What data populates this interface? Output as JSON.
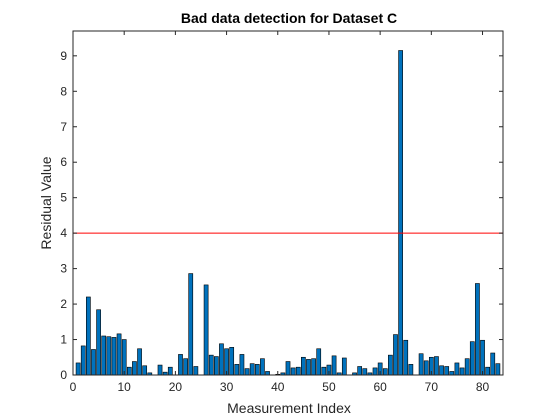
{
  "chart_data": {
    "type": "bar",
    "title": "Bad data detection for Dataset C",
    "xlabel": "Measurement Index",
    "ylabel": "Residual Value",
    "xlim": [
      0,
      84
    ],
    "ylim": [
      0,
      9.7
    ],
    "xticks": [
      0,
      10,
      20,
      30,
      40,
      50,
      60,
      70,
      80
    ],
    "yticks": [
      0,
      1,
      2,
      3,
      4,
      5,
      6,
      7,
      8,
      9
    ],
    "grid": false,
    "bar_color": "#0072BD",
    "threshold": {
      "y": 4,
      "color": "#FF0000"
    },
    "x": [
      1,
      2,
      3,
      4,
      5,
      6,
      7,
      8,
      9,
      10,
      11,
      12,
      13,
      14,
      15,
      16,
      17,
      18,
      19,
      20,
      21,
      22,
      23,
      24,
      25,
      26,
      27,
      28,
      29,
      30,
      31,
      32,
      33,
      34,
      35,
      36,
      37,
      38,
      39,
      40,
      41,
      42,
      43,
      44,
      45,
      46,
      47,
      48,
      49,
      50,
      51,
      52,
      53,
      54,
      55,
      56,
      57,
      58,
      59,
      60,
      61,
      62,
      63,
      64,
      65,
      66,
      67,
      68,
      69,
      70,
      71,
      72,
      73,
      74,
      75,
      76,
      77,
      78,
      79,
      80,
      81,
      82,
      83
    ],
    "values": [
      0.34,
      0.82,
      2.2,
      0.72,
      1.84,
      1.1,
      1.08,
      1.06,
      1.16,
      1.0,
      0.22,
      0.38,
      0.74,
      0.26,
      0.06,
      0.0,
      0.28,
      0.08,
      0.22,
      0.0,
      0.58,
      0.46,
      2.86,
      0.24,
      0.0,
      2.54,
      0.56,
      0.52,
      0.88,
      0.74,
      0.78,
      0.3,
      0.58,
      0.18,
      0.32,
      0.3,
      0.46,
      0.1,
      0.0,
      0.02,
      0.06,
      0.38,
      0.2,
      0.22,
      0.5,
      0.44,
      0.46,
      0.74,
      0.22,
      0.28,
      0.54,
      0.06,
      0.48,
      0.0,
      0.06,
      0.24,
      0.18,
      0.06,
      0.2,
      0.34,
      0.18,
      0.56,
      1.14,
      9.15,
      0.98,
      0.3,
      0.0,
      0.6,
      0.4,
      0.5,
      0.52,
      0.26,
      0.24,
      0.1,
      0.34,
      0.2,
      0.46,
      0.94,
      2.58,
      0.98,
      0.22,
      0.62,
      0.32
    ]
  }
}
